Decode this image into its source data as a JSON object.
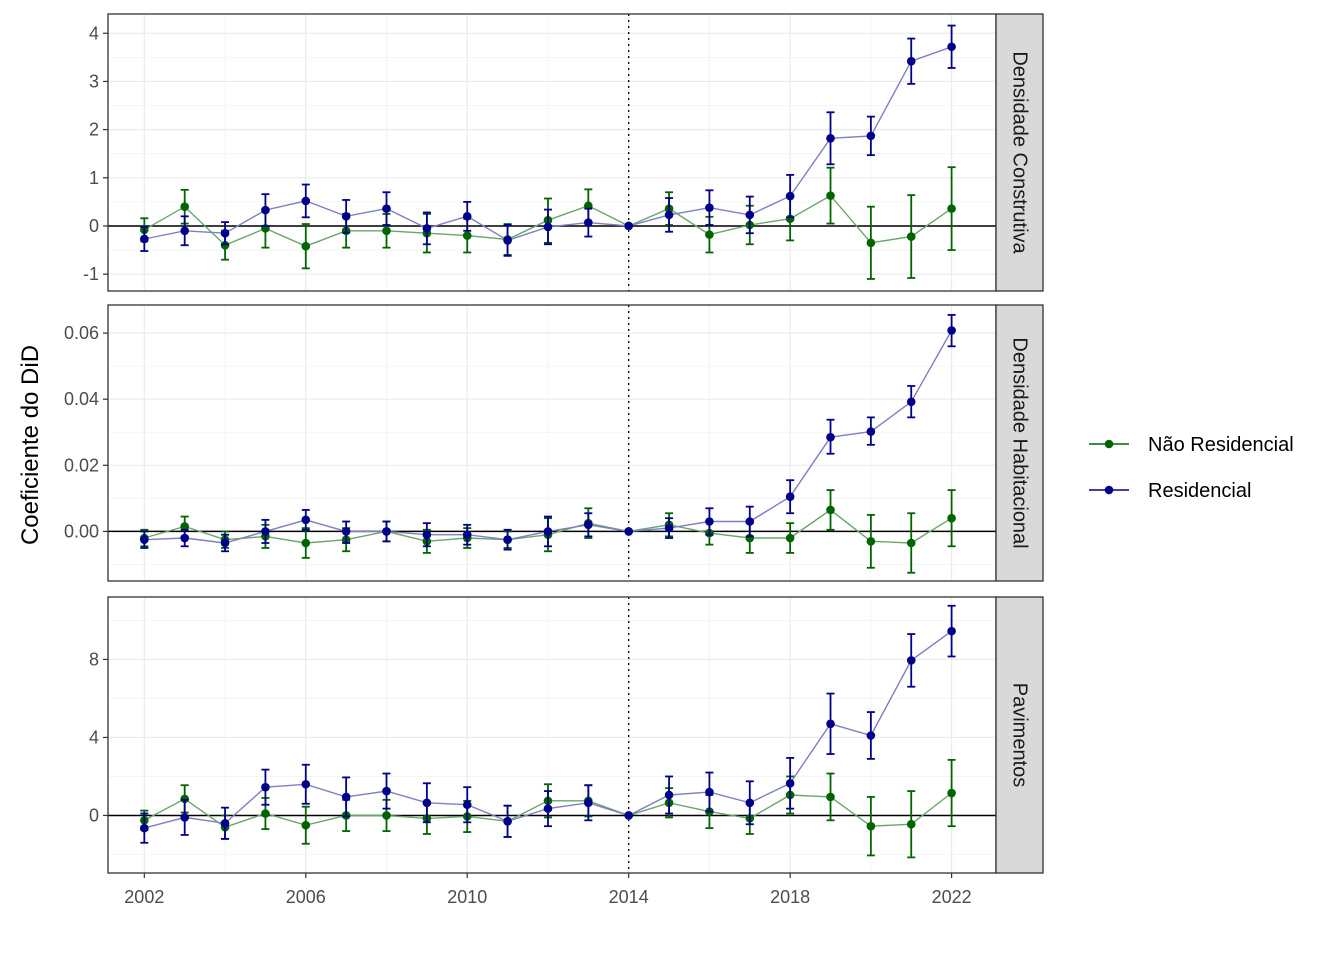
{
  "chart_data": {
    "type": "line",
    "ylabel": "Coeficiente do DiD",
    "xlabel": "",
    "x_ticks": [
      "2002",
      "2006",
      "2010",
      "2014",
      "2018",
      "2022"
    ],
    "x_tick_values": [
      2002,
      2006,
      2010,
      2014,
      2018,
      2022
    ],
    "xlim": [
      2001.1,
      2023.1
    ],
    "reference_line_x": 2014,
    "reference_line_y": 0,
    "legend": {
      "position": "right",
      "entries": [
        {
          "name": "Não Residencial",
          "color": "#006400"
        },
        {
          "name": "Residencial",
          "color": "#00008B"
        }
      ]
    },
    "colors": {
      "nao_residencial_line": "#6aa66a",
      "residencial_line": "#7f7fc2"
    },
    "x": [
      2002,
      2003,
      2004,
      2005,
      2006,
      2007,
      2008,
      2009,
      2010,
      2011,
      2012,
      2013,
      2014,
      2015,
      2016,
      2017,
      2018,
      2019,
      2020,
      2021,
      2022
    ],
    "facets": [
      {
        "label": "Densidade Construtiva",
        "ylim": [
          -1.35,
          4.4
        ],
        "y_ticks": [
          -1,
          0,
          1,
          2,
          3,
          4
        ],
        "y_tick_labels": [
          "-1",
          "0",
          "1",
          "2",
          "3",
          "4"
        ],
        "series": [
          {
            "name": "Não Residencial",
            "values": [
              -0.08,
              0.4,
              -0.4,
              -0.05,
              -0.42,
              -0.1,
              -0.1,
              -0.15,
              -0.2,
              -0.28,
              0.12,
              0.42,
              0.0,
              0.36,
              -0.18,
              0.02,
              0.15,
              0.63,
              -0.35,
              -0.22,
              0.36
            ],
            "lower": [
              -0.32,
              0.05,
              -0.7,
              -0.45,
              -0.88,
              -0.45,
              -0.45,
              -0.55,
              -0.55,
              -0.6,
              -0.35,
              0.08,
              0.0,
              0.02,
              -0.55,
              -0.38,
              -0.3,
              0.05,
              -1.1,
              -1.08,
              -0.5
            ],
            "upper": [
              0.16,
              0.75,
              -0.1,
              0.35,
              0.04,
              0.25,
              0.25,
              0.25,
              0.15,
              0.04,
              0.57,
              0.76,
              0.0,
              0.7,
              0.19,
              0.42,
              0.6,
              1.21,
              0.4,
              0.64,
              1.22
            ]
          },
          {
            "name": "Residencial",
            "values": [
              -0.27,
              -0.1,
              -0.15,
              0.33,
              0.52,
              0.2,
              0.36,
              -0.05,
              0.2,
              -0.3,
              -0.02,
              0.07,
              0.0,
              0.23,
              0.38,
              0.23,
              0.62,
              1.82,
              1.87,
              3.42,
              3.72
            ],
            "lower": [
              -0.52,
              -0.4,
              -0.38,
              0.0,
              0.18,
              -0.14,
              0.02,
              -0.38,
              -0.1,
              -0.62,
              -0.38,
              -0.22,
              0.0,
              -0.12,
              0.02,
              -0.15,
              0.18,
              1.28,
              1.47,
              2.95,
              3.28
            ],
            "upper": [
              -0.02,
              0.2,
              0.08,
              0.66,
              0.86,
              0.54,
              0.7,
              0.28,
              0.5,
              0.02,
              0.34,
              0.36,
              0.0,
              0.58,
              0.74,
              0.61,
              1.06,
              2.36,
              2.27,
              3.89,
              4.16
            ]
          }
        ]
      },
      {
        "label": "Densidade Habitacional",
        "ylim": [
          -0.015,
          0.0685
        ],
        "y_ticks": [
          0,
          0.02,
          0.04,
          0.06
        ],
        "y_tick_labels": [
          "0.00",
          "0.02",
          "0.04",
          "0.06"
        ],
        "series": [
          {
            "name": "Não Residencial",
            "values": [
              -0.002,
              0.0015,
              -0.0025,
              -0.0015,
              -0.0035,
              -0.0025,
              0.0,
              -0.003,
              -0.002,
              -0.0025,
              -0.001,
              0.0025,
              0.0,
              0.002,
              -0.0005,
              -0.002,
              -0.002,
              0.0065,
              -0.003,
              -0.0035,
              0.004
            ],
            "lower": [
              -0.0045,
              -0.0015,
              -0.005,
              -0.005,
              -0.008,
              -0.006,
              -0.003,
              -0.0065,
              -0.005,
              -0.005,
              -0.006,
              -0.002,
              0.0,
              -0.0015,
              -0.004,
              -0.0065,
              -0.0065,
              0.0005,
              -0.011,
              -0.0125,
              -0.0045
            ],
            "upper": [
              0.0005,
              0.0045,
              0.0,
              0.002,
              0.001,
              0.001,
              0.003,
              0.0005,
              0.001,
              0.0,
              0.004,
              0.007,
              0.0,
              0.0055,
              0.003,
              0.0025,
              0.0025,
              0.0125,
              0.005,
              0.0055,
              0.0125
            ]
          },
          {
            "name": "Residencial",
            "values": [
              -0.0025,
              -0.002,
              -0.0035,
              0.0,
              0.0035,
              0.0,
              0.0,
              -0.001,
              -0.001,
              -0.0025,
              0.0,
              0.002,
              0.0,
              0.001,
              0.003,
              0.003,
              0.0105,
              0.0285,
              0.0302,
              0.0392,
              0.0608
            ],
            "lower": [
              -0.005,
              -0.0045,
              -0.006,
              -0.0035,
              0.0005,
              -0.0035,
              -0.003,
              -0.0045,
              -0.004,
              -0.0055,
              -0.0045,
              -0.0015,
              0.0,
              -0.002,
              -0.001,
              -0.0015,
              0.0055,
              0.0235,
              0.0262,
              0.0345,
              0.056
            ],
            "upper": [
              0.0,
              0.0005,
              -0.001,
              0.0035,
              0.0065,
              0.003,
              0.003,
              0.0025,
              0.002,
              0.0005,
              0.0045,
              0.0055,
              0.0,
              0.004,
              0.007,
              0.0075,
              0.0155,
              0.0338,
              0.0345,
              0.044,
              0.0655
            ]
          }
        ]
      },
      {
        "label": "Pavimentos",
        "ylim": [
          -2.95,
          11.2
        ],
        "y_ticks": [
          0,
          4,
          8
        ],
        "y_tick_labels": [
          "0",
          "4",
          "8"
        ],
        "series": [
          {
            "name": "Não Residencial",
            "values": [
              -0.25,
              0.85,
              -0.6,
              0.1,
              -0.5,
              0.0,
              0.0,
              -0.15,
              -0.05,
              -0.3,
              0.75,
              0.75,
              0.0,
              0.65,
              0.2,
              -0.15,
              1.05,
              0.95,
              -0.55,
              -0.45,
              1.15
            ],
            "lower": [
              -0.75,
              0.15,
              -1.2,
              -0.7,
              -1.45,
              -0.8,
              -0.8,
              -0.95,
              -0.85,
              -1.1,
              -0.1,
              -0.05,
              0.0,
              -0.1,
              -0.65,
              -0.95,
              0.1,
              -0.25,
              -2.05,
              -2.15,
              -0.55
            ],
            "upper": [
              0.25,
              1.55,
              0.0,
              0.9,
              0.45,
              0.8,
              0.8,
              0.65,
              0.75,
              0.5,
              1.6,
              1.55,
              0.0,
              1.4,
              1.05,
              0.65,
              2.0,
              2.15,
              0.95,
              1.25,
              2.85
            ]
          },
          {
            "name": "Residencial",
            "values": [
              -0.65,
              -0.1,
              -0.4,
              1.45,
              1.6,
              0.95,
              1.25,
              0.65,
              0.55,
              -0.3,
              0.35,
              0.65,
              0.0,
              1.05,
              1.2,
              0.65,
              1.65,
              4.7,
              4.1,
              7.95,
              9.45
            ],
            "lower": [
              -1.4,
              -1.0,
              -1.2,
              0.55,
              0.6,
              -0.05,
              0.35,
              -0.35,
              -0.35,
              -1.1,
              -0.55,
              -0.25,
              0.0,
              0.1,
              0.2,
              -0.45,
              0.35,
              3.15,
              2.9,
              6.6,
              8.15
            ],
            "upper": [
              0.1,
              0.8,
              0.4,
              2.35,
              2.6,
              1.95,
              2.15,
              1.65,
              1.45,
              0.5,
              1.25,
              1.55,
              0.0,
              2.0,
              2.2,
              1.75,
              2.95,
              6.25,
              5.3,
              9.3,
              10.75
            ]
          }
        ]
      }
    ]
  }
}
